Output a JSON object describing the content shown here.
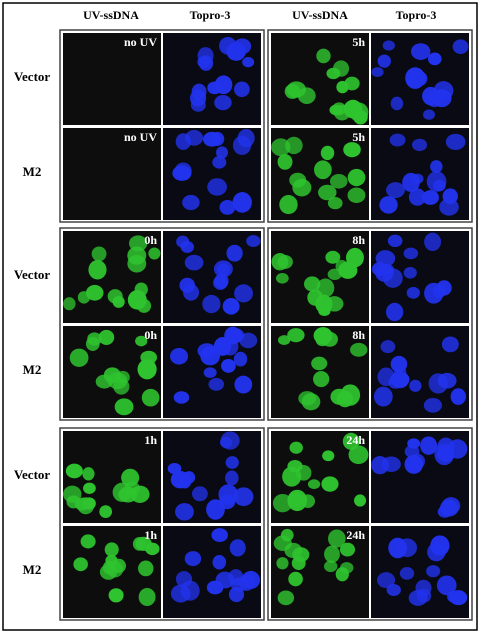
{
  "column_headers": [
    "UV-ssDNA",
    "Topro-3",
    "UV-ssDNA",
    "Topro-3"
  ],
  "groups": [
    {
      "rows": [
        {
          "label": "Vector",
          "left_tag": "no UV",
          "right_tag": "5h"
        },
        {
          "label": "M2",
          "left_tag": "no UV",
          "right_tag": "5h"
        }
      ]
    },
    {
      "rows": [
        {
          "label": "Vector",
          "left_tag": "0h",
          "right_tag": "8h"
        },
        {
          "label": "M2",
          "left_tag": "0h",
          "right_tag": "8h"
        }
      ]
    },
    {
      "rows": [
        {
          "label": "Vector",
          "left_tag": "1h",
          "right_tag": "24h"
        },
        {
          "label": "M2",
          "left_tag": "1h",
          "right_tag": "24h"
        }
      ]
    }
  ]
}
